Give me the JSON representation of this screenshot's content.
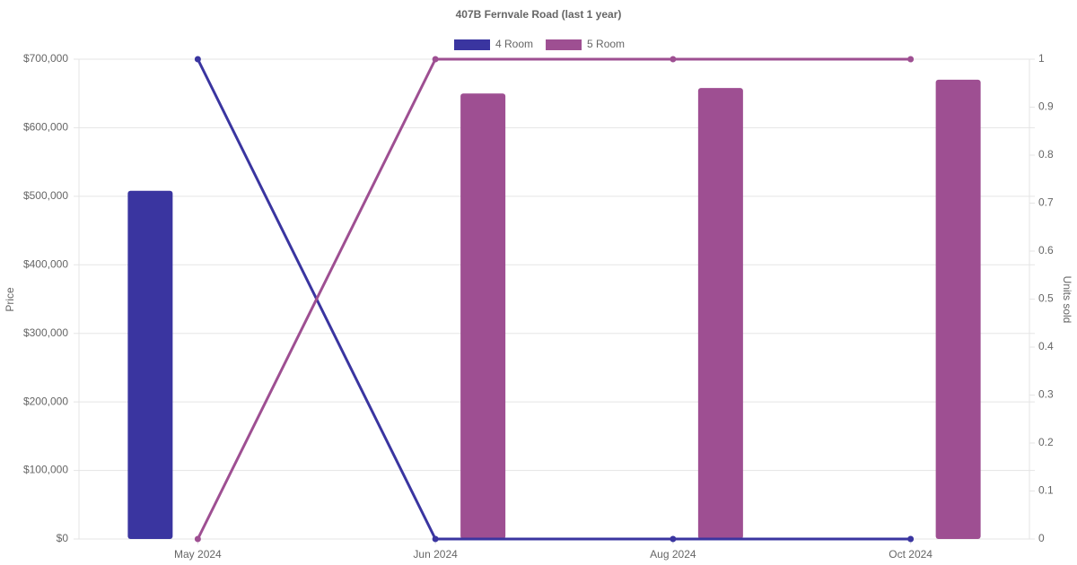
{
  "chart_data": {
    "type": "bar-line",
    "title": "407B Fernvale Road (last 1 year)",
    "y_label": "Price",
    "y2_label": "Units sold",
    "categories": [
      "May 2024",
      "Jun 2024",
      "Aug 2024",
      "Oct 2024"
    ],
    "series": [
      {
        "name": "4 Room",
        "color": "#3a35a0",
        "values": [
          508000,
          null,
          null,
          null
        ],
        "y2_values": [
          1,
          0,
          0,
          0
        ]
      },
      {
        "name": "5 Room",
        "color": "#9e4f92",
        "values": [
          null,
          650000,
          658000,
          670000
        ],
        "y2_values": [
          0,
          1,
          1,
          1
        ]
      }
    ],
    "ylim": [
      0,
      700000
    ],
    "yticks": [
      {
        "value": 0,
        "label": "$0"
      },
      {
        "value": 100000,
        "label": "$100,000"
      },
      {
        "value": 200000,
        "label": "$200,000"
      },
      {
        "value": 300000,
        "label": "$300,000"
      },
      {
        "value": 400000,
        "label": "$400,000"
      },
      {
        "value": 500000,
        "label": "$500,000"
      },
      {
        "value": 600000,
        "label": "$600,000"
      },
      {
        "value": 700000,
        "label": "$700,000"
      }
    ],
    "y2lim": [
      0,
      1
    ],
    "y2ticks": [
      0,
      0.1,
      0.2,
      0.3,
      0.4,
      0.5,
      0.6,
      0.7,
      0.8,
      0.9,
      1
    ],
    "grid": true
  }
}
